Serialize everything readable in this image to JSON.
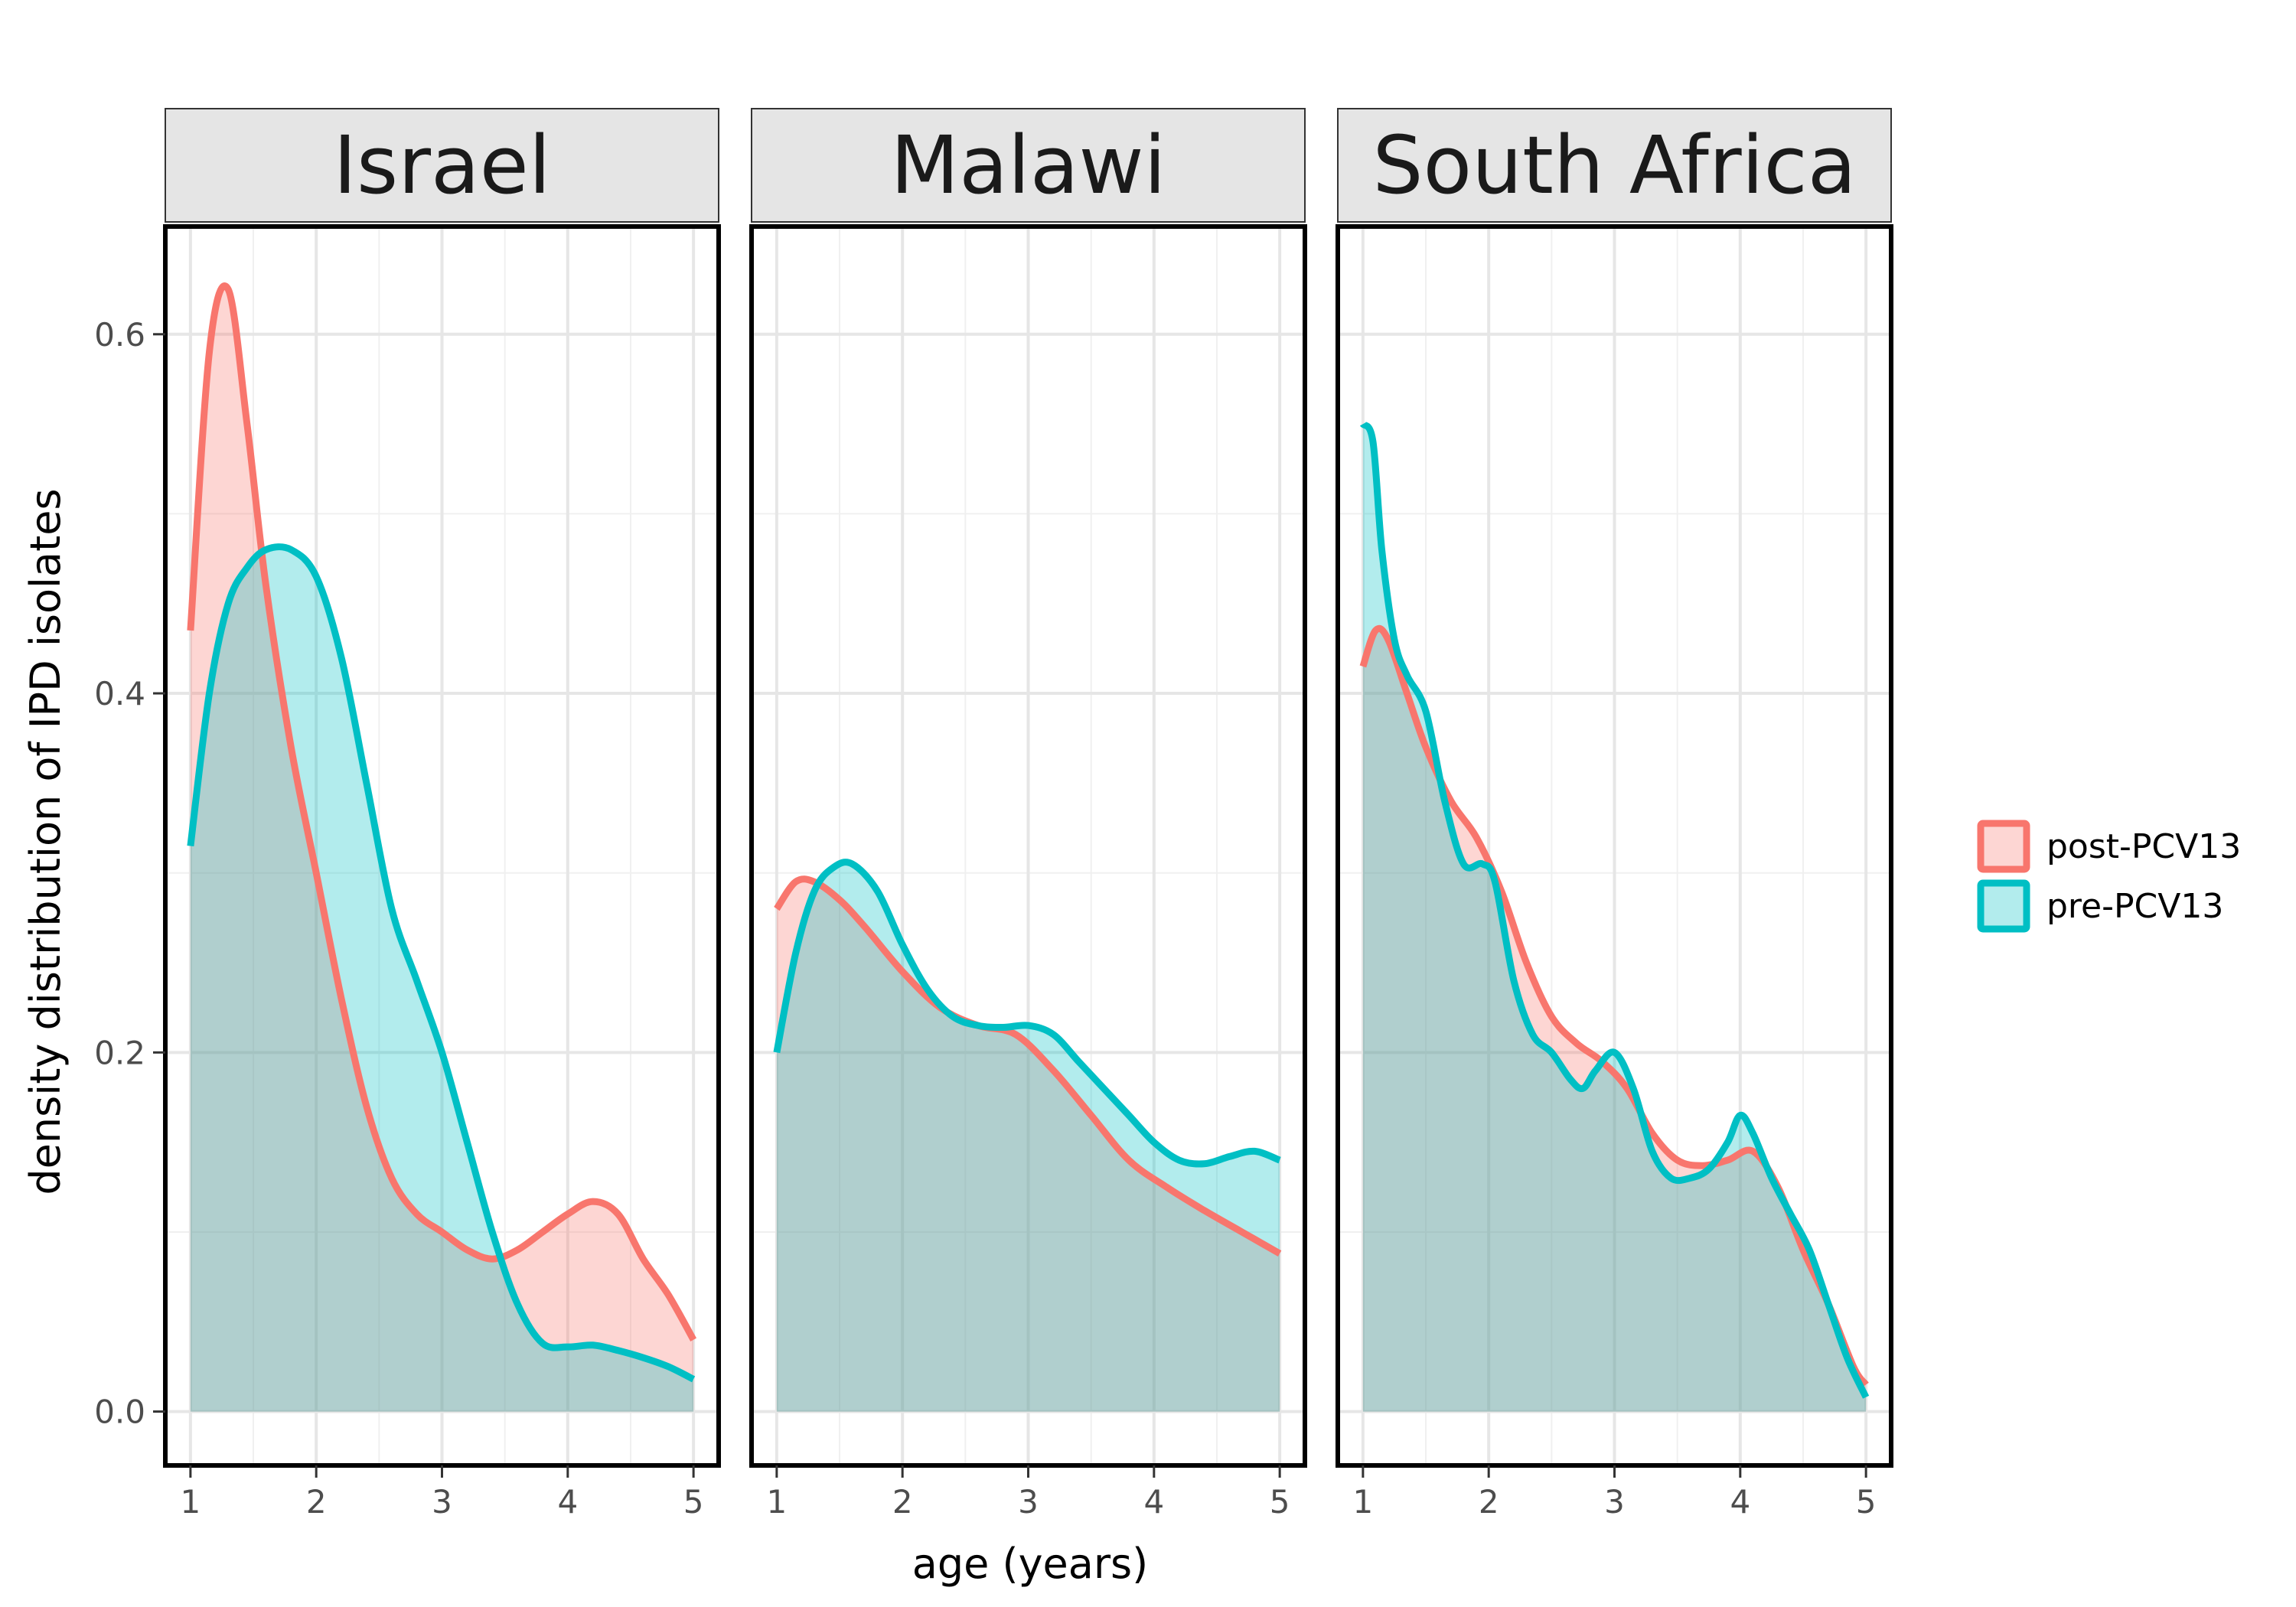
{
  "chart_data": {
    "type": "area",
    "xlabel": "age (years)",
    "ylabel": "density distribution of IPD isolates",
    "xlim": [
      0.8,
      5.2
    ],
    "ylim": [
      -0.03,
      0.66
    ],
    "x_ticks": [
      1,
      2,
      3,
      4,
      5
    ],
    "y_ticks": [
      0.0,
      0.2,
      0.4,
      0.6
    ],
    "y_tick_labels": [
      "0.0",
      "0.2",
      "0.4",
      "0.6"
    ],
    "grid": true,
    "legend": {
      "placement": "right",
      "entries": [
        {
          "label": "post-PCV13",
          "color": "#F8766D"
        },
        {
          "label": "pre-PCV13",
          "color": "#00BFC4"
        }
      ]
    },
    "panels": [
      {
        "title": "Israel",
        "series": [
          {
            "name": "post-PCV13",
            "color": "#F8766D",
            "x": [
              1.0,
              1.15,
              1.3,
              1.45,
              1.6,
              1.8,
              2.0,
              2.2,
              2.4,
              2.6,
              2.8,
              3.0,
              3.2,
              3.4,
              3.6,
              3.8,
              4.0,
              4.2,
              4.4,
              4.6,
              4.8,
              5.0
            ],
            "y": [
              0.435,
              0.59,
              0.625,
              0.55,
              0.46,
              0.37,
              0.3,
              0.23,
              0.17,
              0.13,
              0.11,
              0.1,
              0.09,
              0.085,
              0.09,
              0.1,
              0.11,
              0.117,
              0.11,
              0.085,
              0.065,
              0.04
            ]
          },
          {
            "name": "pre-PCV13",
            "color": "#00BFC4",
            "x": [
              1.0,
              1.15,
              1.3,
              1.45,
              1.6,
              1.8,
              2.0,
              2.2,
              2.4,
              2.6,
              2.8,
              3.0,
              3.2,
              3.4,
              3.6,
              3.8,
              4.0,
              4.2,
              4.4,
              4.6,
              4.8,
              5.0
            ],
            "y": [
              0.315,
              0.4,
              0.45,
              0.47,
              0.48,
              0.48,
              0.465,
              0.42,
              0.35,
              0.28,
              0.24,
              0.2,
              0.15,
              0.1,
              0.06,
              0.038,
              0.036,
              0.037,
              0.034,
              0.03,
              0.025,
              0.018
            ]
          }
        ]
      },
      {
        "title": "Malawi",
        "series": [
          {
            "name": "post-PCV13",
            "color": "#F8766D",
            "x": [
              1.0,
              1.15,
              1.3,
              1.5,
              1.7,
              2.0,
              2.3,
              2.6,
              2.9,
              3.2,
              3.5,
              3.8,
              4.1,
              4.4,
              4.7,
              5.0
            ],
            "y": [
              0.28,
              0.295,
              0.295,
              0.285,
              0.27,
              0.245,
              0.225,
              0.215,
              0.21,
              0.19,
              0.165,
              0.14,
              0.125,
              0.112,
              0.1,
              0.088
            ]
          },
          {
            "name": "pre-PCV13",
            "color": "#00BFC4",
            "x": [
              1.0,
              1.15,
              1.3,
              1.45,
              1.6,
              1.8,
              2.0,
              2.2,
              2.4,
              2.6,
              2.8,
              3.0,
              3.2,
              3.4,
              3.6,
              3.8,
              4.0,
              4.2,
              4.4,
              4.6,
              4.8,
              5.0
            ],
            "y": [
              0.2,
              0.255,
              0.29,
              0.303,
              0.305,
              0.29,
              0.26,
              0.235,
              0.22,
              0.215,
              0.214,
              0.215,
              0.21,
              0.195,
              0.18,
              0.165,
              0.15,
              0.14,
              0.138,
              0.142,
              0.145,
              0.14
            ]
          }
        ]
      },
      {
        "title": "South Africa",
        "series": [
          {
            "name": "post-PCV13",
            "color": "#F8766D",
            "x": [
              1.0,
              1.1,
              1.2,
              1.35,
              1.5,
              1.7,
              1.9,
              2.1,
              2.3,
              2.5,
              2.7,
              2.9,
              3.1,
              3.3,
              3.5,
              3.7,
              3.9,
              4.1,
              4.3,
              4.5,
              4.7,
              4.9,
              5.0
            ],
            "y": [
              0.415,
              0.435,
              0.43,
              0.4,
              0.37,
              0.34,
              0.32,
              0.29,
              0.25,
              0.22,
              0.205,
              0.195,
              0.18,
              0.155,
              0.14,
              0.137,
              0.14,
              0.145,
              0.125,
              0.09,
              0.06,
              0.025,
              0.015
            ]
          },
          {
            "name": "pre-PCV13",
            "color": "#00BFC4",
            "x": [
              1.0,
              1.08,
              1.15,
              1.25,
              1.35,
              1.5,
              1.65,
              1.8,
              1.95,
              2.05,
              2.2,
              2.35,
              2.5,
              2.65,
              2.75,
              2.85,
              3.0,
              3.15,
              3.3,
              3.45,
              3.6,
              3.75,
              3.9,
              4.0,
              4.1,
              4.25,
              4.4,
              4.55,
              4.7,
              4.85,
              5.0
            ],
            "y": [
              0.55,
              0.54,
              0.48,
              0.43,
              0.41,
              0.39,
              0.34,
              0.305,
              0.305,
              0.295,
              0.24,
              0.21,
              0.2,
              0.185,
              0.18,
              0.19,
              0.2,
              0.18,
              0.145,
              0.13,
              0.13,
              0.135,
              0.15,
              0.165,
              0.155,
              0.13,
              0.11,
              0.09,
              0.06,
              0.03,
              0.008
            ]
          }
        ]
      }
    ]
  }
}
